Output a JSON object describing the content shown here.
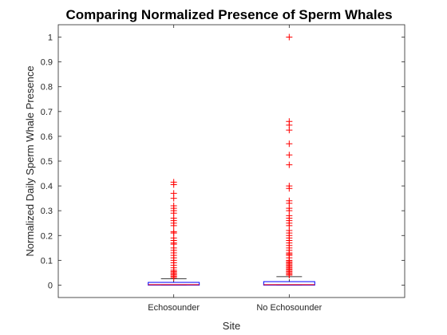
{
  "chart_data": {
    "type": "boxplot",
    "title": "Comparing Normalized Presence of Sperm Whales",
    "xlabel": "Site",
    "ylabel": "Normalized Daily Sperm Whale Presence",
    "ylim": [
      -0.05,
      1.05
    ],
    "yticks": [
      0,
      0.1,
      0.2,
      0.3,
      0.4,
      0.5,
      0.6,
      0.7,
      0.8,
      0.9,
      1
    ],
    "ytick_labels": [
      "0",
      "0.1",
      "0.2",
      "0.3",
      "0.4",
      "0.5",
      "0.6",
      "0.7",
      "0.8",
      "0.9",
      "1"
    ],
    "categories": [
      "Echosounder",
      "No Echosounder"
    ],
    "colors": {
      "box": "#0000ff",
      "median": "#ff0000",
      "outlier": "#ff0000",
      "whisker": "#000000",
      "axis": "#262626"
    },
    "boxes": [
      {
        "category": "Echosounder",
        "whisker_low": 0,
        "q1": 0,
        "median": 0.002,
        "q3": 0.011,
        "whisker_high": 0.026,
        "outliers": [
          0.415,
          0.405,
          0.37,
          0.35,
          0.32,
          0.31,
          0.3,
          0.29,
          0.27,
          0.26,
          0.25,
          0.24,
          0.215,
          0.21,
          0.19,
          0.18,
          0.17,
          0.165,
          0.15,
          0.14,
          0.13,
          0.12,
          0.11,
          0.1,
          0.09,
          0.08,
          0.07,
          0.06,
          0.055,
          0.05,
          0.045,
          0.04,
          0.035,
          0.03
        ]
      },
      {
        "category": "No Echosounder",
        "whisker_low": 0,
        "q1": 0,
        "median": 0.002,
        "q3": 0.014,
        "whisker_high": 0.034,
        "outliers": [
          1.0,
          0.66,
          0.645,
          0.625,
          0.57,
          0.525,
          0.485,
          0.4,
          0.39,
          0.34,
          0.33,
          0.31,
          0.3,
          0.28,
          0.27,
          0.26,
          0.25,
          0.24,
          0.22,
          0.21,
          0.2,
          0.19,
          0.18,
          0.17,
          0.16,
          0.15,
          0.14,
          0.13,
          0.125,
          0.12,
          0.11,
          0.1,
          0.095,
          0.09,
          0.085,
          0.08,
          0.075,
          0.07,
          0.065,
          0.06,
          0.055,
          0.05,
          0.045,
          0.04
        ]
      }
    ]
  }
}
